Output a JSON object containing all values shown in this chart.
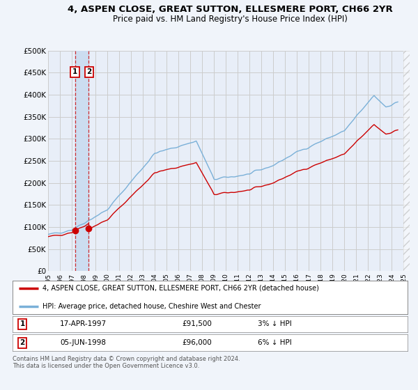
{
  "title": "4, ASPEN CLOSE, GREAT SUTTON, ELLESMERE PORT, CH66 2YR",
  "subtitle": "Price paid vs. HM Land Registry's House Price Index (HPI)",
  "title_fontsize": 9.5,
  "subtitle_fontsize": 8.5,
  "ylabel_ticks": [
    "£0",
    "£50K",
    "£100K",
    "£150K",
    "£200K",
    "£250K",
    "£300K",
    "£350K",
    "£400K",
    "£450K",
    "£500K"
  ],
  "ytick_values": [
    0,
    50000,
    100000,
    150000,
    200000,
    250000,
    300000,
    350000,
    400000,
    450000,
    500000
  ],
  "ylim": [
    0,
    500000
  ],
  "xlim_start": 1995.0,
  "xlim_end": 2025.5,
  "background_color": "#f0f4fa",
  "plot_bg_color": "#e8eef8",
  "grid_color": "#cccccc",
  "hpi_color": "#7ab0d8",
  "price_color": "#cc0000",
  "shade_color": "#ccddf0",
  "sale1_date": 1997.29,
  "sale1_price": 91500,
  "sale1_label": "1",
  "sale2_date": 1998.43,
  "sale2_price": 96000,
  "sale2_label": "2",
  "legend_line1": "4, ASPEN CLOSE, GREAT SUTTON, ELLESMERE PORT, CH66 2YR (detached house)",
  "legend_line2": "HPI: Average price, detached house, Cheshire West and Chester",
  "table_row1": [
    "1",
    "17-APR-1997",
    "£91,500",
    "3% ↓ HPI"
  ],
  "table_row2": [
    "2",
    "05-JUN-1998",
    "£96,000",
    "6% ↓ HPI"
  ],
  "footnote": "Contains HM Land Registry data © Crown copyright and database right 2024.\nThis data is licensed under the Open Government Licence v3.0.",
  "xtick_labels": [
    "1995",
    "1996",
    "1997",
    "1998",
    "1999",
    "2000",
    "2001",
    "2002",
    "2003",
    "2004",
    "2005",
    "2006",
    "2007",
    "2008",
    "2009",
    "2010",
    "2011",
    "2012",
    "2013",
    "2014",
    "2015",
    "2016",
    "2017",
    "2018",
    "2019",
    "2020",
    "2021",
    "2022",
    "2023",
    "2024",
    "2025"
  ]
}
